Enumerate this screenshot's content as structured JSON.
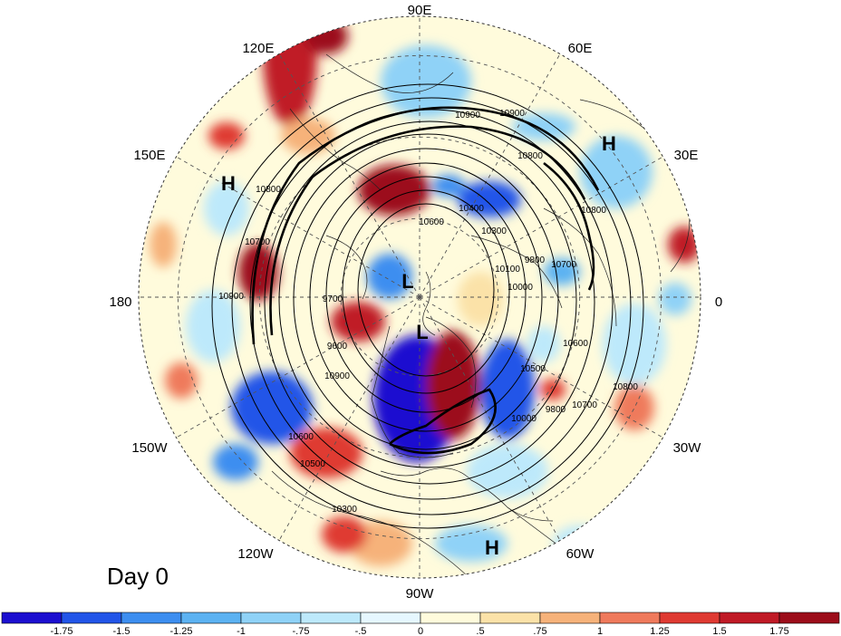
{
  "map": {
    "projection": "north-polar-stereographic",
    "longitude_labels": [
      "90E",
      "60E",
      "30E",
      "0",
      "30W",
      "60W",
      "90W",
      "120W",
      "150W",
      "180",
      "150E",
      "120E"
    ],
    "pressure_centers": [
      {
        "type": "H",
        "region": "northern Europe / western Russia"
      },
      {
        "type": "H",
        "region": "northeast Asia"
      },
      {
        "type": "H",
        "region": "tropical Atlantic"
      },
      {
        "type": "L",
        "region": "Arctic"
      },
      {
        "type": "L",
        "region": "northern Canada"
      }
    ],
    "contour_labels": [
      "10900",
      "10800",
      "10700",
      "10600",
      "10500",
      "10400",
      "10300",
      "10100",
      "10000",
      "9800",
      "9700",
      "9600",
      "10900",
      "10800",
      "10700",
      "10600",
      "10500",
      "10300",
      "10000",
      "9800",
      "10700",
      "10800",
      "10900",
      "10900",
      "10800",
      "10600"
    ],
    "time_label": "Day 0",
    "colorbar": {
      "ticks": [
        "-1.75",
        "-1.5",
        "-1.25",
        "-1",
        "-.75",
        "-.5",
        "0",
        ".5",
        ".75",
        "1",
        "1.25",
        "1.5",
        "1.75"
      ],
      "colors": [
        "#1c0fd0",
        "#2255e8",
        "#3d8ef0",
        "#5cb2f2",
        "#8fd2f7",
        "#bde9fb",
        "#e6f7ff",
        "#fffbdc",
        "#fbe2a8",
        "#f6b27a",
        "#ef7a5c",
        "#df3a32",
        "#c01a26",
        "#9c0d1a"
      ]
    }
  }
}
